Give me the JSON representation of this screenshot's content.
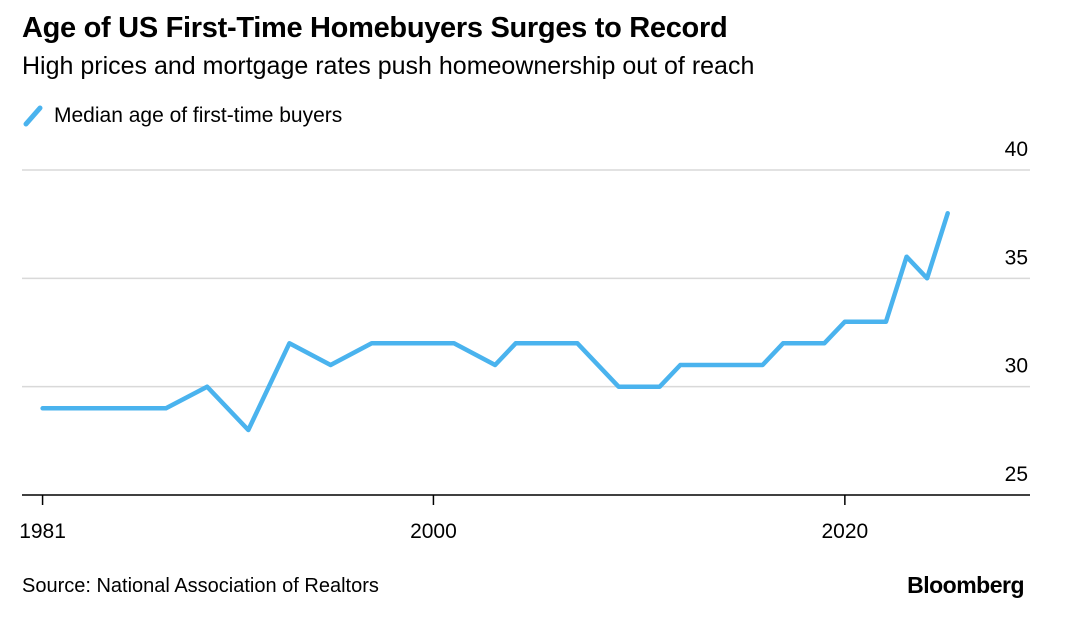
{
  "title": "Age of US First-Time Homebuyers Surges to Record",
  "subtitle": "High prices and mortgage rates push homeownership out of reach",
  "source": "Source: National Association of Realtors",
  "brand": "Bloomberg",
  "colors": {
    "line": "#4AB3EE",
    "grid": "#d9d9d9",
    "axis": "#000000"
  },
  "chart_data": {
    "type": "line",
    "title": "Age of US First-Time Homebuyers Surges to Record",
    "xlabel": "",
    "ylabel": "",
    "xlim": [
      1980,
      2029
    ],
    "ylim": [
      25,
      40
    ],
    "yticks": [
      25,
      30,
      35,
      40
    ],
    "xticks": [
      1981,
      2000,
      2020
    ],
    "grid": true,
    "legend_position": "top-left",
    "series": [
      {
        "name": "Median age of first-time buyers",
        "x": [
          1981,
          1985,
          1987,
          1989,
          1991,
          1993,
          1995,
          1997,
          2001,
          2003,
          2004,
          2007,
          2009,
          2011,
          2012,
          2016,
          2017,
          2019,
          2020,
          2022,
          2023,
          2024,
          2025
        ],
        "y": [
          29,
          29,
          29,
          30,
          28,
          32,
          31,
          32,
          32,
          31,
          32,
          32,
          30,
          30,
          31,
          31,
          32,
          32,
          33,
          33,
          36,
          35,
          38
        ]
      }
    ]
  }
}
